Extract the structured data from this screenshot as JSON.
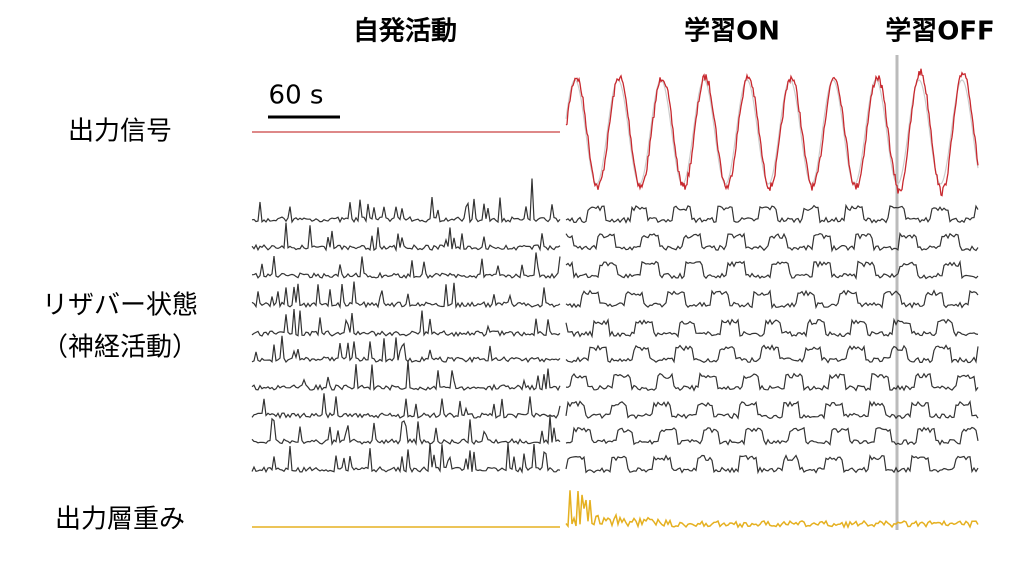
{
  "header": {
    "spontaneous": "自発活動",
    "learning_on": "学習ON",
    "learning_off": "学習OFF"
  },
  "scale_bar": "60 s",
  "rows": {
    "output": "出力信号",
    "reservoir": "リザバー状態",
    "reservoir_sub": "（神経活動）",
    "weights": "出力層重み"
  }
}
